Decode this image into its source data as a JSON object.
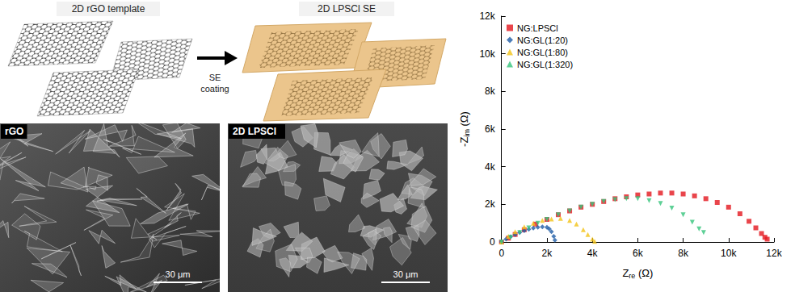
{
  "schematic": {
    "left_label": "2D rGO template",
    "arrow_label": "SE coating",
    "right_label": "2D LPSCl SE"
  },
  "sem_images": [
    {
      "label": "rGO",
      "scale_bar": "30 μm"
    },
    {
      "label": "2D LPSCl",
      "scale_bar": "30 μm"
    }
  ],
  "chart_data": {
    "type": "scatter",
    "xlabel": {
      "text": "Z",
      "subscript": "re",
      "unit": "(Ω)"
    },
    "ylabel": {
      "text": "-Z",
      "subscript": "im",
      "unit": "(Ω)"
    },
    "xlim": [
      0,
      12000
    ],
    "ylim": [
      0,
      12000
    ],
    "xticks": [
      0,
      {
        "value": 2000,
        "label": "2k"
      },
      {
        "value": 4000,
        "label": "4k"
      },
      {
        "value": 6000,
        "label": "6k"
      },
      {
        "value": 8000,
        "label": "8k"
      },
      {
        "value": 10000,
        "label": "10k"
      },
      {
        "value": 12000,
        "label": "12k"
      }
    ],
    "yticks": [
      0,
      {
        "value": 2000,
        "label": "2k"
      },
      {
        "value": 4000,
        "label": "4k"
      },
      {
        "value": 6000,
        "label": "6k"
      },
      {
        "value": 8000,
        "label": "8k"
      },
      {
        "value": 10000,
        "label": "10k"
      },
      {
        "value": 12000,
        "label": "12k"
      }
    ],
    "grid": false,
    "legend": "upper left",
    "series": [
      {
        "name": "NG:LPSCl",
        "color": "#e3171e",
        "marker": "square",
        "x": [
          0,
          300,
          600,
          1000,
          1500,
          2000,
          2500,
          3000,
          3500,
          4000,
          4500,
          5000,
          5500,
          6000,
          6500,
          7000,
          7500,
          8000,
          8500,
          9000,
          9500,
          10000,
          10500,
          10900,
          11200,
          11450,
          11600,
          11700
        ],
        "values": [
          0,
          200,
          400,
          650,
          950,
          1200,
          1450,
          1650,
          1850,
          2000,
          2150,
          2300,
          2400,
          2500,
          2550,
          2600,
          2600,
          2550,
          2450,
          2300,
          2100,
          1850,
          1500,
          1100,
          750,
          450,
          250,
          150
        ]
      },
      {
        "name": "NG:GL(1:20)",
        "color": "#1f5ca6",
        "marker": "diamond",
        "x": [
          0,
          200,
          400,
          600,
          800,
          1000,
          1200,
          1400,
          1600,
          1800,
          2000,
          2100,
          2200,
          2300,
          2350
        ],
        "values": [
          0,
          150,
          280,
          400,
          500,
          600,
          680,
          740,
          780,
          800,
          780,
          700,
          550,
          300,
          100
        ]
      },
      {
        "name": "NG:GL(1:80)",
        "color": "#f2c318",
        "marker": "triangle-up",
        "x": [
          0,
          300,
          600,
          1000,
          1400,
          1800,
          2200,
          2600,
          3000,
          3300,
          3600,
          3800,
          4000,
          4100
        ],
        "values": [
          0,
          300,
          550,
          800,
          1000,
          1150,
          1220,
          1250,
          1150,
          950,
          650,
          400,
          150,
          30
        ]
      },
      {
        "name": "NG:GL(1:320)",
        "color": "#36c47c",
        "marker": "triangle-down",
        "x": [
          0,
          400,
          800,
          1200,
          1600,
          2000,
          2500,
          3000,
          3500,
          4000,
          4500,
          5000,
          5500,
          6000,
          6500,
          7000,
          7500,
          8000,
          8400,
          8700,
          8900
        ],
        "values": [
          0,
          250,
          500,
          750,
          1000,
          1200,
          1450,
          1650,
          1850,
          2000,
          2150,
          2250,
          2300,
          2300,
          2200,
          2050,
          1800,
          1450,
          1050,
          700,
          500
        ]
      }
    ]
  }
}
